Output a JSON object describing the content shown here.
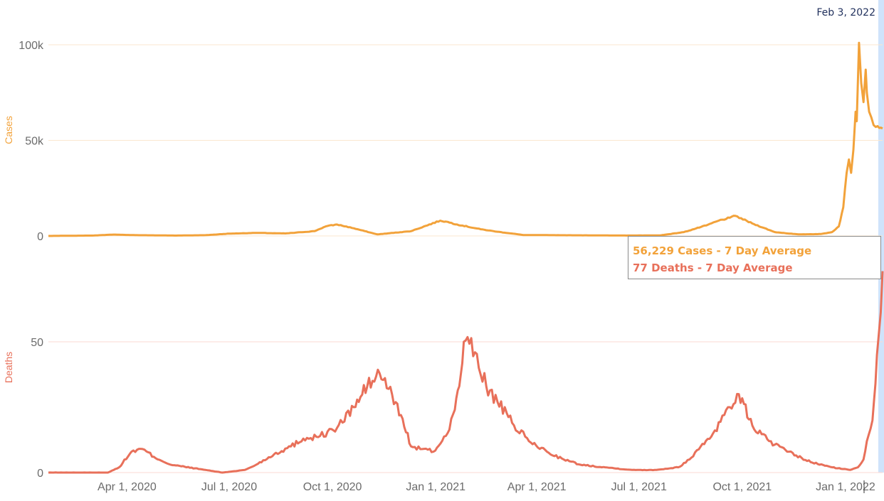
{
  "hover": {
    "date": "Feb 3, 2022",
    "cases_text": "56,229 Cases - 7 Day Average",
    "deaths_text": "77 Deaths - 7 Day Average"
  },
  "colors": {
    "cases": "#f2a23a",
    "deaths": "#e8705a",
    "hover_band": "#cfe3fb"
  },
  "chart_data": [
    {
      "type": "line",
      "ylabel": "Cases",
      "yticks": [
        "0",
        "50k",
        "100k"
      ],
      "ylim": [
        0,
        100000
      ],
      "xlim": [
        "2020-01-22",
        "2022-02-03"
      ],
      "xtick_labels": [
        "Apr 1, 2020",
        "Jul 1, 2020",
        "Oct 1, 2020",
        "Jan 1, 2021",
        "Apr 1, 2021",
        "Jul 1, 2021",
        "Oct 1, 2021",
        "Jan 1, 2022"
      ],
      "xtick_dates": [
        "2020-04-01",
        "2020-07-01",
        "2020-10-01",
        "2021-01-01",
        "2021-04-01",
        "2021-07-01",
        "2021-10-01",
        "2022-01-01"
      ],
      "grid": true,
      "series": [
        {
          "x": [
            "2020-01-22",
            "2020-03-01",
            "2020-03-20",
            "2020-04-10",
            "2020-05-15",
            "2020-06-10",
            "2020-07-01",
            "2020-07-25",
            "2020-08-20",
            "2020-09-15",
            "2020-09-25",
            "2020-10-05",
            "2020-10-20",
            "2020-11-10",
            "2020-12-10",
            "2021-01-05",
            "2021-01-10",
            "2021-01-20",
            "2021-02-10",
            "2021-02-25",
            "2021-03-20",
            "2021-04-15",
            "2021-05-20",
            "2021-06-20",
            "2021-07-20",
            "2021-08-10",
            "2021-08-30",
            "2021-09-10",
            "2021-09-20",
            "2021-09-25",
            "2021-10-10",
            "2021-10-30",
            "2021-11-20",
            "2021-12-10",
            "2021-12-20",
            "2021-12-26",
            "2021-12-30",
            "2022-01-02",
            "2022-01-04",
            "2022-01-06",
            "2022-01-08",
            "2022-01-10",
            "2022-01-11",
            "2022-01-13",
            "2022-01-15",
            "2022-01-17",
            "2022-01-19",
            "2022-01-20",
            "2022-01-22",
            "2022-01-24",
            "2022-01-26",
            "2022-01-28",
            "2022-01-31",
            "2022-02-03"
          ],
          "y": [
            0,
            200,
            700,
            400,
            200,
            400,
            1200,
            1600,
            1300,
            2500,
            5000,
            6000,
            4000,
            800,
            2500,
            8000,
            7500,
            6000,
            3500,
            2200,
            500,
            400,
            300,
            200,
            300,
            2000,
            5500,
            8000,
            9500,
            10500,
            6500,
            2000,
            800,
            1000,
            2000,
            5000,
            15000,
            33000,
            40000,
            33000,
            45000,
            65000,
            60000,
            101000,
            80000,
            70000,
            87000,
            75000,
            65000,
            62000,
            58000,
            57000,
            56500,
            56229
          ]
        }
      ]
    },
    {
      "type": "line",
      "ylabel": "Deaths",
      "yticks": [
        "0",
        "50"
      ],
      "ylim": [
        0,
        80
      ],
      "xlim": [
        "2020-01-22",
        "2022-02-03"
      ],
      "grid": true,
      "series": [
        {
          "x": [
            "2020-01-22",
            "2020-03-15",
            "2020-03-25",
            "2020-04-05",
            "2020-04-15",
            "2020-04-25",
            "2020-05-10",
            "2020-06-10",
            "2020-06-25",
            "2020-07-15",
            "2020-07-25",
            "2020-08-10",
            "2020-08-25",
            "2020-09-05",
            "2020-09-20",
            "2020-10-05",
            "2020-10-20",
            "2020-11-01",
            "2020-11-12",
            "2020-11-20",
            "2020-12-01",
            "2020-12-10",
            "2020-12-20",
            "2020-12-30",
            "2021-01-10",
            "2021-01-18",
            "2021-01-22",
            "2021-01-26",
            "2021-02-05",
            "2021-02-15",
            "2021-02-25",
            "2021-03-10",
            "2021-03-25",
            "2021-04-10",
            "2021-04-25",
            "2021-05-10",
            "2021-06-01",
            "2021-06-25",
            "2021-07-15",
            "2021-08-05",
            "2021-08-15",
            "2021-08-25",
            "2021-09-05",
            "2021-09-15",
            "2021-09-20",
            "2021-09-28",
            "2021-10-10",
            "2021-10-25",
            "2021-11-10",
            "2021-12-01",
            "2021-12-20",
            "2022-01-05",
            "2022-01-12",
            "2022-01-17",
            "2022-01-20",
            "2022-01-25",
            "2022-01-29",
            "2022-02-03"
          ],
          "y": [
            0,
            0,
            2,
            8,
            9,
            6,
            3,
            1,
            0,
            1,
            3,
            7,
            10,
            13,
            14,
            17,
            25,
            33,
            38,
            32,
            22,
            10,
            9,
            8,
            14,
            24,
            33,
            50,
            46,
            33,
            27,
            19,
            12,
            8,
            5,
            3,
            2,
            1,
            1,
            2,
            5,
            10,
            15,
            22,
            25,
            30,
            18,
            12,
            8,
            4,
            2,
            1,
            2,
            5,
            12,
            20,
            45,
            77
          ]
        }
      ]
    }
  ]
}
